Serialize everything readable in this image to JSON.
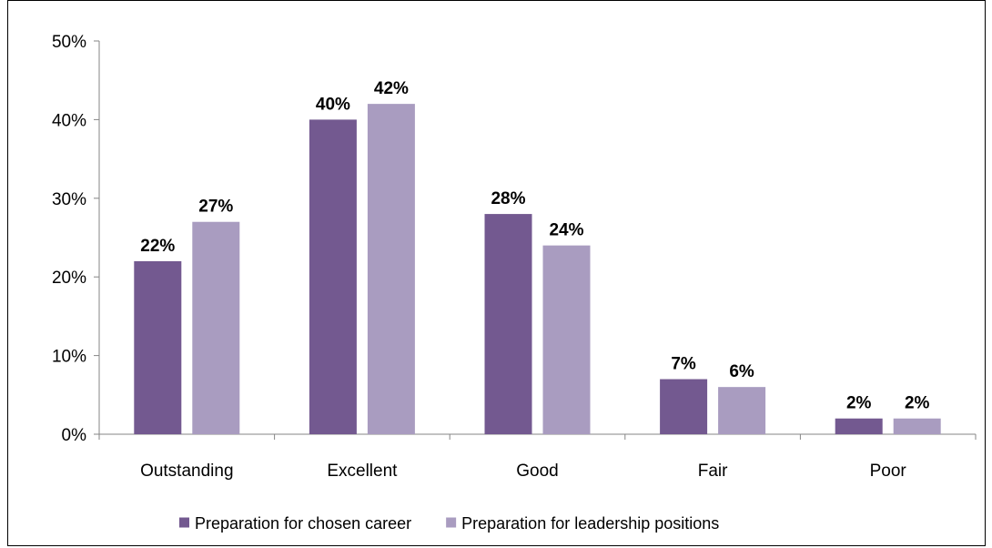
{
  "chart_data": {
    "type": "bar",
    "categories": [
      "Outstanding",
      "Excellent",
      "Good",
      "Fair",
      "Poor"
    ],
    "series": [
      {
        "name": "Preparation for chosen career",
        "values": [
          22,
          40,
          28,
          7,
          2
        ],
        "labels": [
          "22%",
          "40%",
          "28%",
          "7%",
          "2%"
        ],
        "color": "#735990"
      },
      {
        "name": "Preparation for leadership positions",
        "values": [
          27,
          42,
          24,
          6,
          2
        ],
        "labels": [
          "27%",
          "42%",
          "24%",
          "6%",
          "2%"
        ],
        "color": "#a99cc0"
      }
    ],
    "yticks": [
      "0%",
      "10%",
      "20%",
      "30%",
      "40%",
      "50%"
    ],
    "ylim": [
      0,
      50
    ],
    "grid": false,
    "legend_position": "bottom"
  }
}
